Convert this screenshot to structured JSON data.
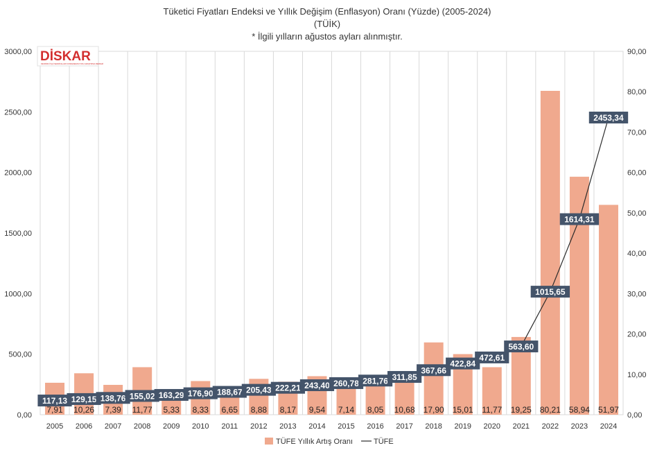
{
  "chart_data": {
    "type": "bar+line",
    "title_lines": [
      "Tüketici Fiyatları Endeksi ve Yıllık Değişim (Enflasyon) Oranı (Yüzde) (2005-2024)",
      "(TÜİK)",
      "* İlgili yılların ağustos ayları alınmıştır."
    ],
    "categories": [
      "2005",
      "2006",
      "2007",
      "2008",
      "2009",
      "2010",
      "2011",
      "2012",
      "2013",
      "2014",
      "2015",
      "2016",
      "2017",
      "2018",
      "2019",
      "2020",
      "2021",
      "2022",
      "2023",
      "2024"
    ],
    "series": [
      {
        "name": "TÜFE Yıllık Artış Oranı",
        "type": "bar",
        "axis": "right",
        "color": "#f0a98e",
        "values": [
          7.91,
          10.26,
          7.39,
          11.77,
          5.33,
          8.33,
          6.65,
          8.88,
          8.17,
          9.54,
          7.14,
          8.05,
          10.68,
          17.9,
          15.01,
          11.77,
          19.25,
          80.21,
          58.94,
          51.97
        ],
        "labels": [
          "7,91",
          "10,26",
          "7,39",
          "11,77",
          "5,33",
          "8,33",
          "6,65",
          "8,88",
          "8,17",
          "9,54",
          "7,14",
          "8,05",
          "10,68",
          "17,90",
          "15,01",
          "11,77",
          "19,25",
          "80,21",
          "58,94",
          "51,97"
        ]
      },
      {
        "name": "TÜFE",
        "type": "line",
        "axis": "left",
        "color": "#2b2b2b",
        "label_bg": "#44546a",
        "values": [
          117.13,
          129.15,
          138.76,
          155.02,
          163.29,
          176.9,
          188.67,
          205.43,
          222.21,
          243.4,
          260.78,
          281.76,
          311.85,
          367.66,
          422.84,
          472.61,
          563.6,
          1015.65,
          1614.31,
          2453.34
        ],
        "labels": [
          "117,13",
          "129,15",
          "138,76",
          "155,02",
          "163,29",
          "176,90",
          "188,67",
          "205,43",
          "222,21",
          "243,40",
          "260,78",
          "281,76",
          "311,85",
          "367,66",
          "422,84",
          "472,61",
          "563,60",
          "1015,65",
          "1614,31",
          "2453,34"
        ]
      }
    ],
    "y_left": {
      "min": 0,
      "max": 3000,
      "ticks": [
        "0,00",
        "500,00",
        "1000,00",
        "1500,00",
        "2000,00",
        "2500,00",
        "3000,00"
      ]
    },
    "y_right": {
      "min": 0,
      "max": 90,
      "ticks": [
        "0,00",
        "10,00",
        "20,00",
        "30,00",
        "40,00",
        "50,00",
        "60,00",
        "70,00",
        "80,00",
        "90,00"
      ]
    },
    "grid": "vertical",
    "legend_position": "bottom"
  },
  "logo": {
    "text": "DİSKAR",
    "tagline": "DEVRİMCİ İŞÇİ SENDİKALARI KONFEDERASYONU ARAŞTIRMA MERKEZİ",
    "color": "#d32f2f"
  }
}
